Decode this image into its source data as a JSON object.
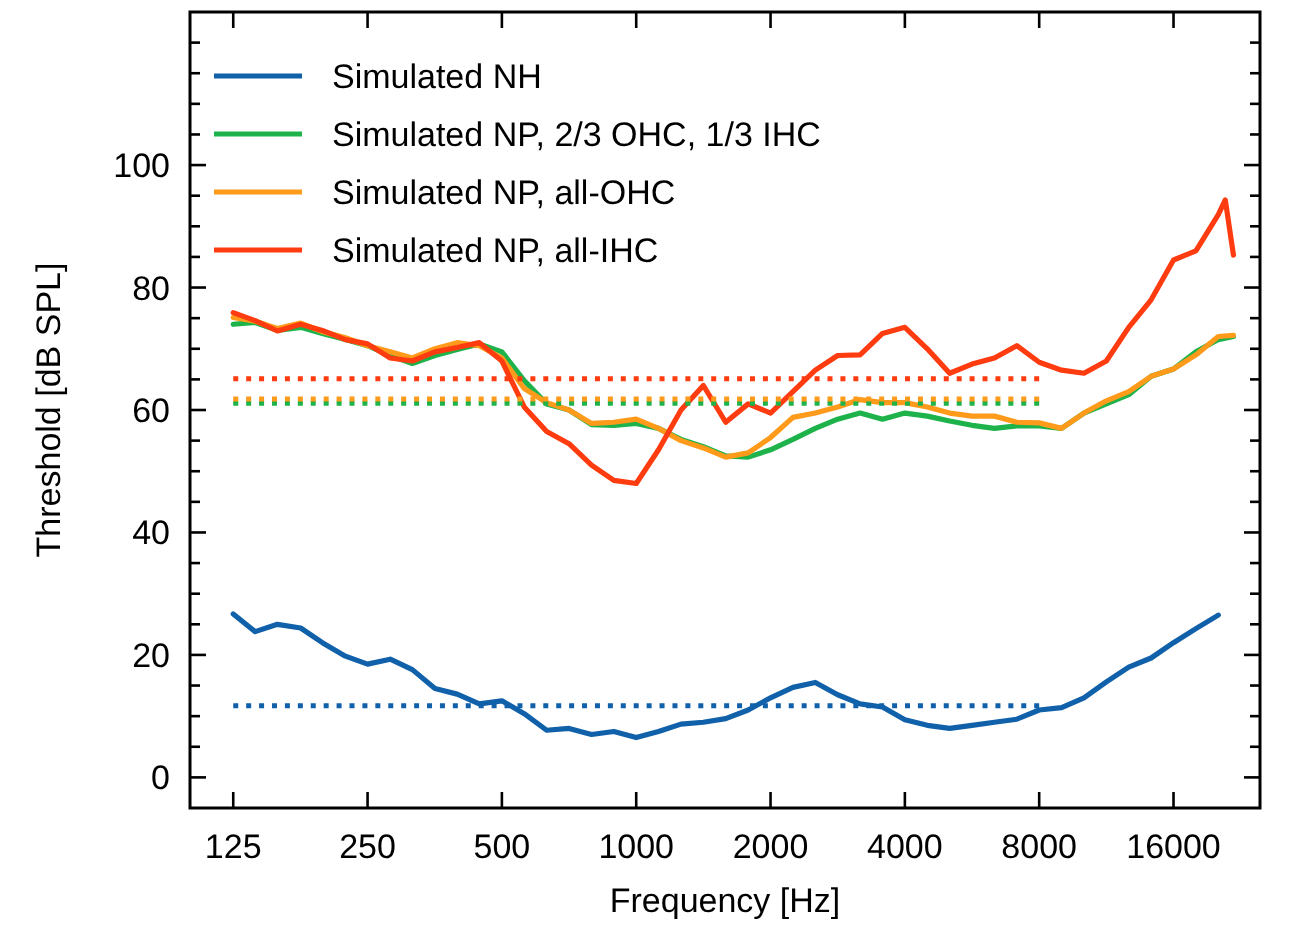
{
  "chart_data": {
    "type": "line",
    "xlabel": "Frequency [Hz]",
    "ylabel": "Threshold [dB SPL]",
    "log": "x",
    "xlim": [
      100,
      25000
    ],
    "ylim": [
      -5,
      125
    ],
    "xticks": [
      125,
      250,
      500,
      1000,
      2000,
      4000,
      8000,
      16000
    ],
    "yticks": [
      0,
      {
        "value": 5,
        "label": null
      },
      {
        "value": 10,
        "label": null
      },
      {
        "value": 15,
        "label": null
      },
      20,
      {
        "value": 25,
        "label": null
      },
      {
        "value": 30,
        "label": null
      },
      {
        "value": 35,
        "label": null
      },
      40,
      {
        "value": 45,
        "label": null
      },
      {
        "value": 50,
        "label": null
      },
      {
        "value": 55,
        "label": null
      },
      60,
      {
        "value": 65,
        "label": null
      },
      {
        "value": 70,
        "label": null
      },
      {
        "value": 75,
        "label": null
      },
      80,
      {
        "value": 85,
        "label": null
      },
      {
        "value": 90,
        "label": null
      },
      {
        "value": 95,
        "label": null
      },
      100,
      {
        "value": 105,
        "label": null
      },
      {
        "value": 110,
        "label": null
      },
      {
        "value": 115,
        "label": null
      },
      {
        "value": 120,
        "label": null
      }
    ],
    "legend": "top left",
    "grid": false,
    "line_style": "solid",
    "x": [
      125,
      140,
      157,
      177,
      198,
      223,
      250,
      281,
      315,
      354,
      397,
      445,
      500,
      561,
      630,
      707,
      794,
      891,
      1000,
      1122,
      1260,
      1414,
      1587,
      1782,
      2000,
      2245,
      2520,
      2828,
      3175,
      3564,
      4000,
      4490,
      5040,
      5657,
      6350,
      7127,
      8000,
      8980,
      10079,
      11314,
      12699,
      14254,
      16000,
      17959,
      20159
    ],
    "series": [
      {
        "name": "Simulated NH",
        "color": "#1060aa",
        "values": [
          26.7,
          23.8,
          25,
          24.4,
          22,
          19.8,
          18.5,
          19.3,
          17.6,
          14.5,
          13.6,
          12,
          12.5,
          10.4,
          7.7,
          8,
          7,
          7.5,
          6.5,
          7.5,
          8.7,
          9,
          9.6,
          11,
          13,
          14.7,
          15.5,
          13.5,
          12,
          11.5,
          9.4,
          8.5,
          8,
          8.5,
          9,
          9.5,
          11,
          11.4,
          13,
          15.6,
          18,
          19.5,
          22,
          24.3,
          26.5
        ]
      },
      {
        "name": "Simulated NP, 2/3 OHC, 1/3 IHC",
        "color": "#1db34a",
        "x": [
          125,
          140,
          157,
          177,
          198,
          223,
          250,
          281,
          315,
          354,
          397,
          445,
          500,
          561,
          630,
          707,
          794,
          891,
          1000,
          1122,
          1260,
          1414,
          1587,
          1782,
          2000,
          2245,
          2520,
          2828,
          3175,
          3564,
          4000,
          4490,
          5040,
          5657,
          6350,
          7127,
          8000,
          8980,
          10079,
          11314,
          12699,
          14254,
          16000,
          17959,
          20159,
          21800
        ],
        "values": [
          74,
          74.3,
          73,
          73.5,
          72.5,
          71.5,
          70.5,
          68.9,
          67.6,
          68.9,
          69.9,
          70.8,
          69.5,
          64.8,
          61,
          60,
          57.6,
          57.5,
          57.8,
          57,
          55.2,
          54,
          52.5,
          52.3,
          53.5,
          55.2,
          57,
          58.5,
          59.5,
          58.5,
          59.5,
          59,
          58.2,
          57.5,
          57,
          57.4,
          57.4,
          57,
          59.5,
          61,
          62.5,
          65.5,
          66.7,
          69.5,
          71.5,
          72
        ]
      },
      {
        "name": "Simulated NP, all-OHC",
        "color": "#ff9a1a",
        "x": [
          125,
          140,
          157,
          177,
          198,
          223,
          250,
          281,
          315,
          354,
          397,
          445,
          500,
          561,
          630,
          707,
          794,
          891,
          1000,
          1122,
          1260,
          1414,
          1587,
          1782,
          2000,
          2245,
          2520,
          2828,
          3175,
          3564,
          4000,
          4490,
          5040,
          5657,
          6350,
          7127,
          8000,
          8980,
          10079,
          11314,
          12699,
          14254,
          16000,
          17959,
          20159,
          21800
        ],
        "values": [
          75.1,
          74.5,
          73.3,
          74.2,
          72.8,
          71.8,
          70.5,
          69.5,
          68.5,
          70,
          71,
          70.5,
          68.5,
          63.5,
          61.2,
          60,
          57.8,
          58,
          58.5,
          57,
          55,
          53.8,
          52.3,
          53,
          55.5,
          58.8,
          59.5,
          60.5,
          61.7,
          61.2,
          61.2,
          60.5,
          59.5,
          59,
          59,
          58,
          57.9,
          57,
          59.5,
          61.5,
          63,
          65.5,
          66.7,
          69,
          72,
          72.2
        ]
      },
      {
        "name": "Simulated NP, all-IHC",
        "color": "#ff3b10",
        "x": [
          125,
          140,
          157,
          177,
          198,
          223,
          250,
          281,
          315,
          354,
          397,
          445,
          500,
          561,
          630,
          707,
          794,
          891,
          1000,
          1122,
          1260,
          1414,
          1587,
          1782,
          2000,
          2245,
          2520,
          2828,
          3175,
          3564,
          4000,
          4490,
          5040,
          5657,
          6350,
          7127,
          8000,
          8980,
          10079,
          11314,
          12699,
          14254,
          16000,
          17959,
          20159,
          20900,
          21800
        ],
        "values": [
          75.9,
          74.6,
          72.9,
          74,
          73,
          71.5,
          70.8,
          68.5,
          68,
          69.5,
          70.2,
          71,
          68,
          60.5,
          56.5,
          54.5,
          51,
          48.5,
          48,
          53.5,
          60,
          64,
          58,
          61,
          59.5,
          63,
          66.5,
          68.9,
          69,
          72.5,
          73.5,
          70,
          66,
          67.5,
          68.5,
          70.5,
          67.8,
          66.5,
          66,
          68,
          73.5,
          78,
          84.5,
          86,
          91.9,
          94.3,
          85.3
        ]
      },
      {
        "color": "#1060aa",
        "line_style": "dotted",
        "x": [
          125,
          8000
        ],
        "values": [
          11.7,
          11.7
        ]
      },
      {
        "color": "#1db34a",
        "line_style": "dotted",
        "x": [
          125,
          8000
        ],
        "values": [
          61.1,
          61.1
        ]
      },
      {
        "color": "#ff9a1a",
        "line_style": "dotted",
        "x": [
          125,
          8000
        ],
        "values": [
          61.8,
          61.8
        ]
      },
      {
        "color": "#ff3b10",
        "line_style": "dotted",
        "x": [
          125,
          8000
        ],
        "values": [
          65.1,
          65.1
        ]
      }
    ]
  }
}
